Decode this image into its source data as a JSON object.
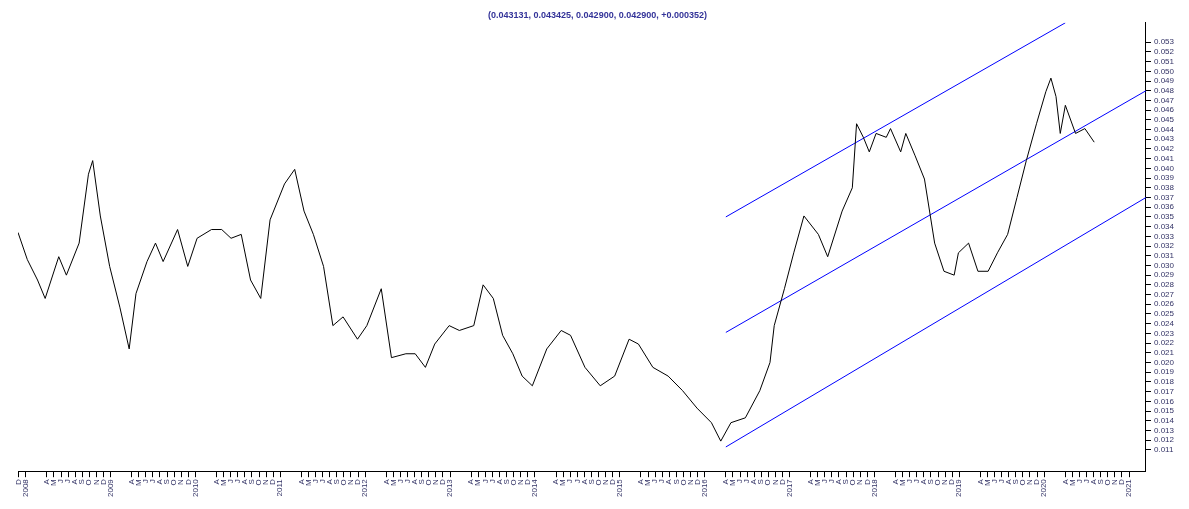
{
  "chart_data": {
    "type": "line",
    "title": "(0.043131, 0.043425, 0.042900, 0.042900, +0.000352)",
    "marker": "none",
    "series": [
      {
        "color": "#000000",
        "x": [
          2007.91,
          2008.02,
          2008.14,
          2008.23,
          2008.39,
          2008.48,
          2008.63,
          2008.74,
          2008.79,
          2008.88,
          2008.99,
          2009.11,
          2009.22,
          2009.3,
          2009.43,
          2009.53,
          2009.62,
          2009.79,
          2009.91,
          2010.02,
          2010.19,
          2010.31,
          2010.42,
          2010.54,
          2010.65,
          2010.77,
          2010.88,
          2011.05,
          2011.17,
          2011.28,
          2011.39,
          2011.51,
          2011.62,
          2011.74,
          2011.91,
          2012.02,
          2012.19,
          2012.31,
          2012.48,
          2012.59,
          2012.71,
          2012.82,
          2012.99,
          2013.11,
          2013.28,
          2013.39,
          2013.51,
          2013.62,
          2013.74,
          2013.85,
          2013.97,
          2014.14,
          2014.31,
          2014.42,
          2014.59,
          2014.77,
          2014.94,
          2015.11,
          2015.22,
          2015.39,
          2015.57,
          2015.74,
          2015.91,
          2016.08,
          2016.19,
          2016.31,
          2016.48,
          2016.65,
          2016.77,
          2016.82,
          2016.94,
          2017.05,
          2017.17,
          2017.34,
          2017.45,
          2017.62,
          2017.74,
          2017.79,
          2017.87,
          2017.94,
          2018.02,
          2018.14,
          2018.19,
          2018.31,
          2018.37,
          2018.48,
          2018.59,
          2018.71,
          2018.82,
          2018.94,
          2018.99,
          2019.11,
          2019.22,
          2019.34,
          2019.45,
          2019.57,
          2019.68,
          2019.79,
          2019.91,
          2020.02,
          2020.08,
          2020.14,
          2020.19,
          2020.25,
          2020.37,
          2020.48,
          2020.59
        ],
        "values": [
          0.0334,
          0.0306,
          0.0285,
          0.0266,
          0.0309,
          0.029,
          0.0323,
          0.0394,
          0.0408,
          0.0351,
          0.0299,
          0.0257,
          0.0214,
          0.0271,
          0.0304,
          0.0323,
          0.0304,
          0.0337,
          0.0299,
          0.0328,
          0.0337,
          0.0337,
          0.0328,
          0.0332,
          0.0285,
          0.0266,
          0.0347,
          0.0384,
          0.0399,
          0.0356,
          0.0332,
          0.0299,
          0.0238,
          0.0247,
          0.0224,
          0.0238,
          0.0276,
          0.0205,
          0.0209,
          0.0209,
          0.0195,
          0.0219,
          0.0238,
          0.0233,
          0.0238,
          0.028,
          0.0266,
          0.0228,
          0.0209,
          0.0186,
          0.0176,
          0.0214,
          0.0233,
          0.0228,
          0.0195,
          0.0176,
          0.0186,
          0.0224,
          0.0219,
          0.0195,
          0.0186,
          0.0171,
          0.0153,
          0.0138,
          0.0119,
          0.0138,
          0.0143,
          0.0171,
          0.02,
          0.0238,
          0.0276,
          0.0313,
          0.0351,
          0.0332,
          0.0309,
          0.0356,
          0.038,
          0.0446,
          0.0432,
          0.0417,
          0.0436,
          0.0432,
          0.0441,
          0.0417,
          0.0436,
          0.0413,
          0.0389,
          0.0323,
          0.0294,
          0.029,
          0.0313,
          0.0323,
          0.0294,
          0.0294,
          0.0313,
          0.0332,
          0.037,
          0.0408,
          0.0446,
          0.0479,
          0.0493,
          0.0474,
          0.0436,
          0.0465,
          0.0436,
          0.0441,
          0.0427
        ]
      },
      {
        "color": "#0000ff",
        "x": [
          2016.25,
          2020.25
        ],
        "values": [
          0.035,
          0.055
        ]
      },
      {
        "color": "#0000ff",
        "x": [
          2016.25,
          2021.2
        ],
        "values": [
          0.0231,
          0.048
        ]
      },
      {
        "color": "#0000ff",
        "x": [
          2016.25,
          2021.2
        ],
        "values": [
          0.0113,
          0.037
        ]
      }
    ],
    "xlim": [
      2007.91,
      2021.2
    ],
    "xticks": [
      {
        "value": 2007.917,
        "label": "D"
      },
      {
        "value": 2008,
        "label": "2008"
      },
      {
        "value": 2008.25,
        "label": "A"
      },
      {
        "value": 2008.333,
        "label": "M"
      },
      {
        "value": 2008.417,
        "label": "J"
      },
      {
        "value": 2008.5,
        "label": "J"
      },
      {
        "value": 2008.583,
        "label": "A"
      },
      {
        "value": 2008.667,
        "label": "S"
      },
      {
        "value": 2008.75,
        "label": "O"
      },
      {
        "value": 2008.833,
        "label": "N"
      },
      {
        "value": 2008.917,
        "label": "D"
      },
      {
        "value": 2009,
        "label": "2009"
      },
      {
        "value": 2009.25,
        "label": "A"
      },
      {
        "value": 2009.333,
        "label": "M"
      },
      {
        "value": 2009.417,
        "label": "J"
      },
      {
        "value": 2009.5,
        "label": "J"
      },
      {
        "value": 2009.583,
        "label": "A"
      },
      {
        "value": 2009.667,
        "label": "S"
      },
      {
        "value": 2009.75,
        "label": "O"
      },
      {
        "value": 2009.833,
        "label": "N"
      },
      {
        "value": 2009.917,
        "label": "D"
      },
      {
        "value": 2010,
        "label": "2010"
      },
      {
        "value": 2010.25,
        "label": "A"
      },
      {
        "value": 2010.333,
        "label": "M"
      },
      {
        "value": 2010.417,
        "label": "J"
      },
      {
        "value": 2010.5,
        "label": "J"
      },
      {
        "value": 2010.583,
        "label": "A"
      },
      {
        "value": 2010.667,
        "label": "S"
      },
      {
        "value": 2010.75,
        "label": "O"
      },
      {
        "value": 2010.833,
        "label": "N"
      },
      {
        "value": 2010.917,
        "label": "D"
      },
      {
        "value": 2011,
        "label": "2011"
      },
      {
        "value": 2011.25,
        "label": "A"
      },
      {
        "value": 2011.333,
        "label": "M"
      },
      {
        "value": 2011.417,
        "label": "J"
      },
      {
        "value": 2011.5,
        "label": "J"
      },
      {
        "value": 2011.583,
        "label": "A"
      },
      {
        "value": 2011.667,
        "label": "S"
      },
      {
        "value": 2011.75,
        "label": "O"
      },
      {
        "value": 2011.833,
        "label": "N"
      },
      {
        "value": 2011.917,
        "label": "D"
      },
      {
        "value": 2012,
        "label": "2012"
      },
      {
        "value": 2012.25,
        "label": "A"
      },
      {
        "value": 2012.333,
        "label": "M"
      },
      {
        "value": 2012.417,
        "label": "J"
      },
      {
        "value": 2012.5,
        "label": "J"
      },
      {
        "value": 2012.583,
        "label": "A"
      },
      {
        "value": 2012.667,
        "label": "S"
      },
      {
        "value": 2012.75,
        "label": "O"
      },
      {
        "value": 2012.833,
        "label": "N"
      },
      {
        "value": 2012.917,
        "label": "D"
      },
      {
        "value": 2013,
        "label": "2013"
      },
      {
        "value": 2013.25,
        "label": "A"
      },
      {
        "value": 2013.333,
        "label": "M"
      },
      {
        "value": 2013.417,
        "label": "J"
      },
      {
        "value": 2013.5,
        "label": "J"
      },
      {
        "value": 2013.583,
        "label": "A"
      },
      {
        "value": 2013.667,
        "label": "S"
      },
      {
        "value": 2013.75,
        "label": "O"
      },
      {
        "value": 2013.833,
        "label": "N"
      },
      {
        "value": 2013.917,
        "label": "D"
      },
      {
        "value": 2014,
        "label": "2014"
      },
      {
        "value": 2014.25,
        "label": "A"
      },
      {
        "value": 2014.333,
        "label": "M"
      },
      {
        "value": 2014.417,
        "label": "J"
      },
      {
        "value": 2014.5,
        "label": "J"
      },
      {
        "value": 2014.583,
        "label": "A"
      },
      {
        "value": 2014.667,
        "label": "S"
      },
      {
        "value": 2014.75,
        "label": "O"
      },
      {
        "value": 2014.833,
        "label": "N"
      },
      {
        "value": 2014.917,
        "label": "D"
      },
      {
        "value": 2015,
        "label": "2015"
      },
      {
        "value": 2015.25,
        "label": "A"
      },
      {
        "value": 2015.333,
        "label": "M"
      },
      {
        "value": 2015.417,
        "label": "J"
      },
      {
        "value": 2015.5,
        "label": "J"
      },
      {
        "value": 2015.583,
        "label": "A"
      },
      {
        "value": 2015.667,
        "label": "S"
      },
      {
        "value": 2015.75,
        "label": "O"
      },
      {
        "value": 2015.833,
        "label": "N"
      },
      {
        "value": 2015.917,
        "label": "D"
      },
      {
        "value": 2016,
        "label": "2016"
      },
      {
        "value": 2016.25,
        "label": "A"
      },
      {
        "value": 2016.333,
        "label": "M"
      },
      {
        "value": 2016.417,
        "label": "J"
      },
      {
        "value": 2016.5,
        "label": "J"
      },
      {
        "value": 2016.583,
        "label": "A"
      },
      {
        "value": 2016.667,
        "label": "S"
      },
      {
        "value": 2016.75,
        "label": "O"
      },
      {
        "value": 2016.833,
        "label": "N"
      },
      {
        "value": 2016.917,
        "label": "D"
      },
      {
        "value": 2017,
        "label": "2017"
      },
      {
        "value": 2017.25,
        "label": "A"
      },
      {
        "value": 2017.333,
        "label": "M"
      },
      {
        "value": 2017.417,
        "label": "J"
      },
      {
        "value": 2017.5,
        "label": "J"
      },
      {
        "value": 2017.583,
        "label": "A"
      },
      {
        "value": 2017.667,
        "label": "S"
      },
      {
        "value": 2017.75,
        "label": "O"
      },
      {
        "value": 2017.833,
        "label": "N"
      },
      {
        "value": 2017.917,
        "label": "D"
      },
      {
        "value": 2018,
        "label": "2018"
      },
      {
        "value": 2018.25,
        "label": "A"
      },
      {
        "value": 2018.333,
        "label": "M"
      },
      {
        "value": 2018.417,
        "label": "J"
      },
      {
        "value": 2018.5,
        "label": "J"
      },
      {
        "value": 2018.583,
        "label": "A"
      },
      {
        "value": 2018.667,
        "label": "S"
      },
      {
        "value": 2018.75,
        "label": "O"
      },
      {
        "value": 2018.833,
        "label": "N"
      },
      {
        "value": 2018.917,
        "label": "D"
      },
      {
        "value": 2019,
        "label": "2019"
      },
      {
        "value": 2019.25,
        "label": "A"
      },
      {
        "value": 2019.333,
        "label": "M"
      },
      {
        "value": 2019.417,
        "label": "J"
      },
      {
        "value": 2019.5,
        "label": "J"
      },
      {
        "value": 2019.583,
        "label": "A"
      },
      {
        "value": 2019.667,
        "label": "S"
      },
      {
        "value": 2019.75,
        "label": "O"
      },
      {
        "value": 2019.833,
        "label": "N"
      },
      {
        "value": 2019.917,
        "label": "D"
      },
      {
        "value": 2020,
        "label": "2020"
      },
      {
        "value": 2020.25,
        "label": "A"
      },
      {
        "value": 2020.333,
        "label": "M"
      },
      {
        "value": 2020.417,
        "label": "J"
      },
      {
        "value": 2020.5,
        "label": "J"
      },
      {
        "value": 2020.583,
        "label": "A"
      },
      {
        "value": 2020.667,
        "label": "S"
      },
      {
        "value": 2020.75,
        "label": "O"
      },
      {
        "value": 2020.833,
        "label": "N"
      },
      {
        "value": 2020.917,
        "label": "D"
      },
      {
        "value": 2021,
        "label": "2021"
      }
    ],
    "ylim": [
      0.0088,
      0.055
    ],
    "yticks": [
      0.011,
      0.012,
      0.013,
      0.014,
      0.015,
      0.016,
      0.017,
      0.018,
      0.019,
      {
        "value": 0.02,
        "label": "0.020"
      },
      0.021,
      0.022,
      0.023,
      0.024,
      0.025,
      0.026,
      0.027,
      0.028,
      0.029,
      {
        "value": 0.03,
        "label": "0.030"
      },
      0.031,
      0.032,
      0.033,
      0.034,
      0.035,
      0.036,
      0.037,
      0.038,
      0.039,
      {
        "value": 0.04,
        "label": "0.040"
      },
      0.041,
      0.042,
      0.043,
      0.044,
      0.045,
      0.046,
      0.047,
      0.048,
      0.049,
      {
        "value": 0.05,
        "label": "0.050"
      },
      0.051,
      0.052,
      0.053
    ]
  }
}
